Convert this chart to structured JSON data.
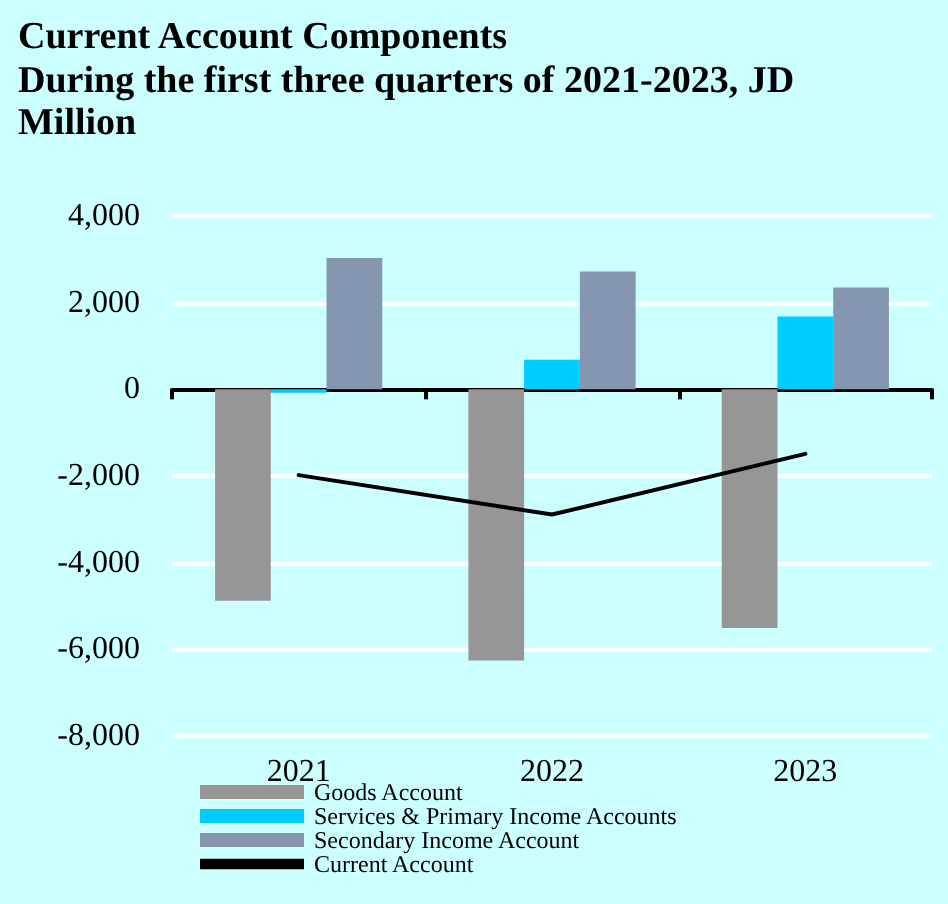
{
  "chart_data": {
    "type": "bar",
    "title": "Current Account Components",
    "subtitle": "During the first three quarters of 2021-2023, JD Million",
    "categories": [
      "2021",
      "2022",
      "2023"
    ],
    "series": [
      {
        "name": "Goods Account",
        "color": "#969696",
        "values": [
          -4880,
          -6260,
          -5510
        ]
      },
      {
        "name": "Services & Primary Income Accounts",
        "color": "#00ccff",
        "values": [
          -80,
          680,
          1680
        ]
      },
      {
        "name": "Secondary Income Account",
        "color": "#8496b0",
        "values": [
          3030,
          2720,
          2350
        ]
      },
      {
        "name": "Current Account",
        "type": "line",
        "color": "#000000",
        "values": [
          -1980,
          -2890,
          -1490
        ]
      }
    ],
    "ylim": [
      -8000,
      4000
    ],
    "yticks": [
      {
        "value": -8000,
        "label": "-8,000"
      },
      {
        "value": -6000,
        "label": "-6,000"
      },
      {
        "value": -4000,
        "label": "-4,000"
      },
      {
        "value": -2000,
        "label": "-2,000"
      },
      0,
      {
        "value": 2000,
        "label": "2,000"
      },
      {
        "value": 4000,
        "label": "4,000"
      }
    ],
    "grid": "y",
    "legend": "bottom",
    "marker": "none",
    "line_style": "solid"
  }
}
